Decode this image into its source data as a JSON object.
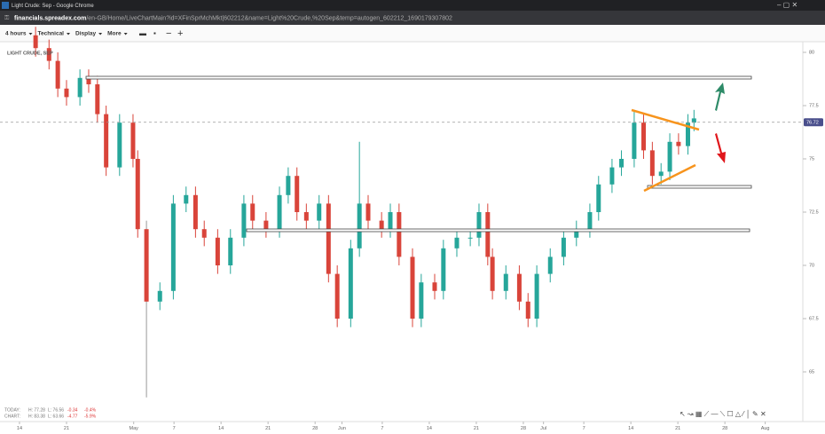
{
  "window": {
    "title": "Light Crude: Sep - Google Chrome",
    "url_host": "financials.spreadex.com",
    "url_path": "/en-GB/Home/LiveChartMain?id=XFinSprMchMkt|602212&name=Light%20Crude,%20Sep&temp=autogen_602212_1690179307802"
  },
  "toolbar": {
    "items": [
      "4 hours",
      "Technical",
      "Display",
      "More"
    ]
  },
  "chart_data": {
    "type": "candlestick",
    "title": "LIGHT CRUDE, SEP",
    "x": [
      2.4,
      4.4,
      5.7,
      7.0,
      9.0,
      10.3,
      11.6,
      12.9,
      14.9,
      16.9,
      17.6,
      18.9,
      20.9,
      22.9,
      24.8,
      26.2,
      27.5,
      29.5,
      31.4,
      33.4,
      34.7,
      36.7,
      38.7,
      40.0,
      41.3,
      42.7,
      44.6,
      46.0,
      47.3,
      49.3,
      50.6,
      51.9,
      53.9,
      55.2,
      56.5,
      58.5,
      59.8,
      61.8,
      63.1,
      65.1,
      67.1,
      68.4,
      69.7,
      70.4,
      72.4,
      74.4,
      75.7,
      77.0,
      79.0,
      81.0,
      82.9,
      84.9,
      86.2,
      88.2,
      89.6,
      91.5,
      92.9,
      94.2,
      95.5,
      96.8,
      98.1,
      99.5,
      100.4
    ],
    "open": [
      80.8,
      80.2,
      79.6,
      78.3,
      77.9,
      78.8,
      78.5,
      77.1,
      74.6,
      76.7,
      75.0,
      71.7,
      68.3,
      68.8,
      72.9,
      73.3,
      71.7,
      71.3,
      70.0,
      71.3,
      72.9,
      72.1,
      71.7,
      73.3,
      74.2,
      72.5,
      72.1,
      72.9,
      69.6,
      67.5,
      70.8,
      72.9,
      72.1,
      71.7,
      72.5,
      70.4,
      67.5,
      69.2,
      68.8,
      70.8,
      71.3,
      71.3,
      72.5,
      70.4,
      68.8,
      69.6,
      68.3,
      67.5,
      69.6,
      70.4,
      71.3,
      71.7,
      72.5,
      73.8,
      74.6,
      75.0,
      76.7,
      75.4,
      74.2,
      74.4,
      75.8,
      75.6,
      76.7
    ],
    "high": [
      81.2,
      80.6,
      80.0,
      78.7,
      79.2,
      79.2,
      78.9,
      77.5,
      77.1,
      77.1,
      75.4,
      72.1,
      69.2,
      73.3,
      73.7,
      73.7,
      72.1,
      71.7,
      71.7,
      73.3,
      73.3,
      72.5,
      73.7,
      74.6,
      74.6,
      72.9,
      73.3,
      73.3,
      70.0,
      71.2,
      75.8,
      73.3,
      72.5,
      72.9,
      72.9,
      70.8,
      69.6,
      69.6,
      71.2,
      71.7,
      71.7,
      72.9,
      72.9,
      70.8,
      70.0,
      70.0,
      68.7,
      70.0,
      70.8,
      71.7,
      72.1,
      72.9,
      74.2,
      75.0,
      75.4,
      77.3,
      77.1,
      75.8,
      74.8,
      76.2,
      76.2,
      77.1,
      77.3
    ],
    "low": [
      79.8,
      79.2,
      77.9,
      77.5,
      77.5,
      78.1,
      76.7,
      74.2,
      74.2,
      74.6,
      71.3,
      63.8,
      67.9,
      68.4,
      72.5,
      71.3,
      70.9,
      69.6,
      69.6,
      70.9,
      71.7,
      71.3,
      71.3,
      72.9,
      72.1,
      71.7,
      71.7,
      69.2,
      67.1,
      67.1,
      70.4,
      71.7,
      71.3,
      71.3,
      70.0,
      67.1,
      67.1,
      68.4,
      68.4,
      70.4,
      70.9,
      70.9,
      70.0,
      68.4,
      68.4,
      67.9,
      67.1,
      67.1,
      69.2,
      70.0,
      70.9,
      71.3,
      72.1,
      73.4,
      74.2,
      74.6,
      75.0,
      73.8,
      73.8,
      74.0,
      75.2,
      75.2,
      76.3
    ],
    "close": [
      80.2,
      79.6,
      78.3,
      77.9,
      78.8,
      78.5,
      77.1,
      74.6,
      76.7,
      75.0,
      71.7,
      68.3,
      68.8,
      72.9,
      73.3,
      71.7,
      71.3,
      70.0,
      71.3,
      72.9,
      72.1,
      71.7,
      73.3,
      74.2,
      72.5,
      72.1,
      72.9,
      69.6,
      67.5,
      70.8,
      72.9,
      72.1,
      71.7,
      72.5,
      70.4,
      67.5,
      69.2,
      68.8,
      70.8,
      71.3,
      71.3,
      72.5,
      70.4,
      68.8,
      69.6,
      68.3,
      67.5,
      69.6,
      70.4,
      71.3,
      71.7,
      72.5,
      73.8,
      74.6,
      75.0,
      76.7,
      75.4,
      74.2,
      74.4,
      75.8,
      75.6,
      76.7,
      76.9
    ],
    "up_color": "#26a69a",
    "down_color": "#d9443a",
    "xlim": [
      -2.9,
      116.6
    ],
    "xticks": [
      {
        "value": 0,
        "label": "14"
      },
      {
        "value": 7,
        "label": "21"
      },
      {
        "value": 17,
        "label": "May"
      },
      {
        "value": 23,
        "label": "7"
      },
      {
        "value": 30,
        "label": "14"
      },
      {
        "value": 37,
        "label": "21"
      },
      {
        "value": 44,
        "label": "28"
      },
      {
        "value": 48,
        "label": "Jun"
      },
      {
        "value": 54,
        "label": "7"
      },
      {
        "value": 61,
        "label": "14"
      },
      {
        "value": 68,
        "label": "21"
      },
      {
        "value": 75,
        "label": "28"
      },
      {
        "value": 78,
        "label": "Jul"
      },
      {
        "value": 84,
        "label": "7"
      },
      {
        "value": 91,
        "label": "14"
      },
      {
        "value": 98,
        "label": "21"
      },
      {
        "value": 105,
        "label": "28"
      },
      {
        "value": 111,
        "label": "Aug"
      }
    ],
    "ylim": [
      63.5,
      80.5
    ],
    "yticks": [
      65,
      67.5,
      70,
      72.5,
      75,
      77.5,
      80
    ],
    "last_price": 76.72
  },
  "stats": {
    "rows": [
      [
        "TODAY:",
        "H: 77.28",
        "L: 76.56",
        "-0.34",
        "-0.4%"
      ],
      [
        "CHART:",
        "H: 83.38",
        "L: 63.66",
        "-4.77",
        "-5.9%"
      ]
    ]
  }
}
